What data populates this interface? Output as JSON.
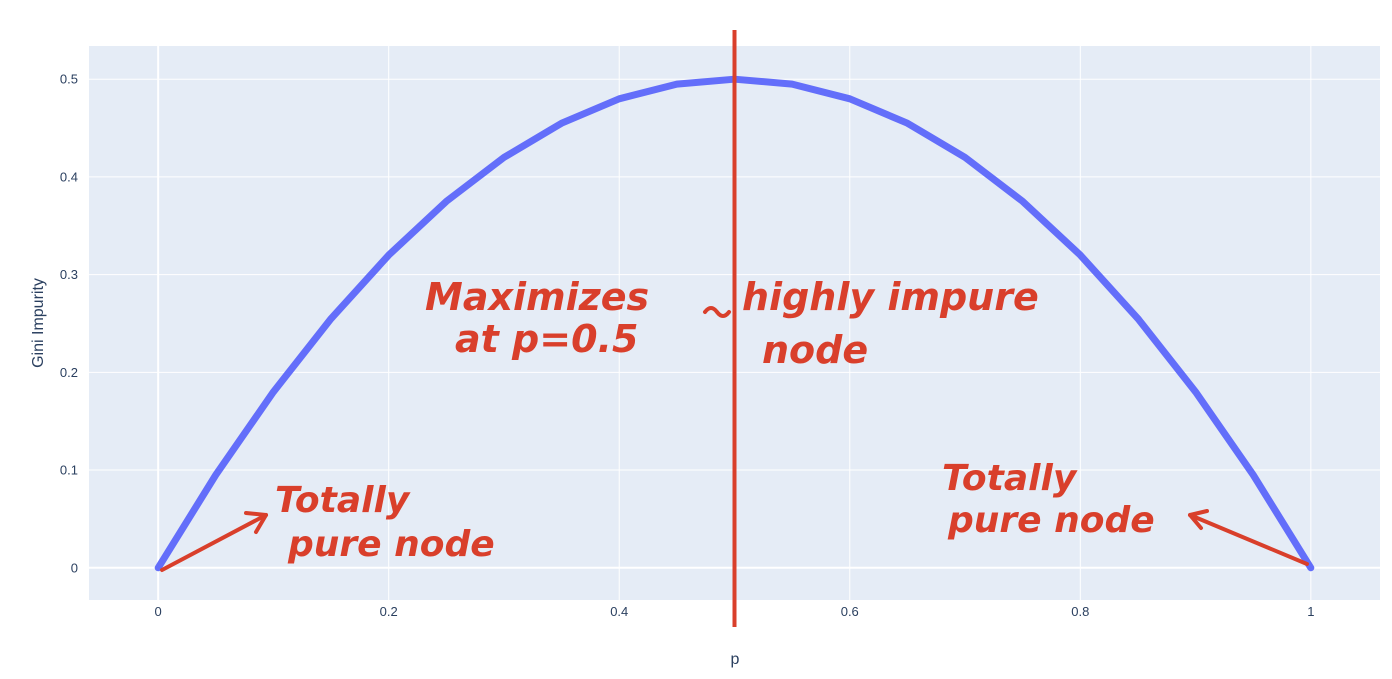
{
  "chart_data": {
    "type": "line",
    "title": "",
    "xlabel": "p",
    "ylabel": "Gini Impurity",
    "xlim": [
      -0.06,
      1.06
    ],
    "ylim": [
      -0.033,
      0.534
    ],
    "grid": true,
    "x_ticks": [
      0,
      0.2,
      0.4,
      0.6,
      0.8,
      1
    ],
    "x_tick_labels": [
      "0",
      "0.2",
      "0.4",
      "0.6",
      "0.8",
      "1"
    ],
    "y_ticks": [
      0,
      0.1,
      0.2,
      0.3,
      0.4,
      0.5
    ],
    "y_tick_labels": [
      "0",
      "0.1",
      "0.2",
      "0.3",
      "0.4",
      "0.5"
    ],
    "series": [
      {
        "x": [
          0,
          0.05,
          0.1,
          0.15,
          0.2,
          0.25,
          0.3,
          0.35,
          0.4,
          0.45,
          0.5,
          0.55,
          0.6,
          0.65,
          0.7,
          0.75,
          0.8,
          0.85,
          0.9,
          0.95,
          1
        ],
        "values": [
          0,
          0.095,
          0.18,
          0.255,
          0.32,
          0.375,
          0.42,
          0.455,
          0.48,
          0.495,
          0.5,
          0.495,
          0.48,
          0.455,
          0.42,
          0.375,
          0.32,
          0.255,
          0.18,
          0.095,
          0
        ],
        "color": "#636efa"
      }
    ],
    "vline": {
      "x": 0.5,
      "color": "#d93f2b"
    },
    "annotations": [
      {
        "text": "Maximizes at p=0.5 highly impure node",
        "color": "#d93f2b"
      },
      {
        "text": "Totally pure node",
        "color": "#d93f2b",
        "anchor_x": 0
      },
      {
        "text": "Totally pure node",
        "color": "#d93f2b",
        "anchor_x": 1
      }
    ]
  },
  "colors": {
    "plot_bg": "#e5ecf6",
    "grid": "#ffffff",
    "series": "#636efa",
    "annotation": "#d93f2b",
    "tick_text": "#2a3f5f"
  }
}
